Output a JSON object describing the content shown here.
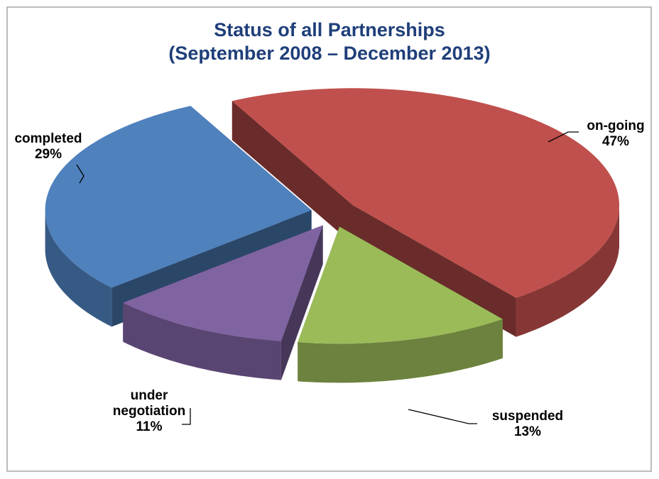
{
  "chart_data": {
    "type": "pie",
    "title": "Status of all Partnerships",
    "subtitle": "(September 2008 – December 2013)",
    "categories": [
      "on-going",
      "suspended",
      "under negotiation",
      "completed"
    ],
    "values": [
      47,
      13,
      11,
      29
    ],
    "value_labels": [
      "47%",
      "13%",
      "11%",
      "29%"
    ],
    "colors": [
      "#c0504d",
      "#9bbb59",
      "#8064a2",
      "#4f81bd"
    ]
  }
}
